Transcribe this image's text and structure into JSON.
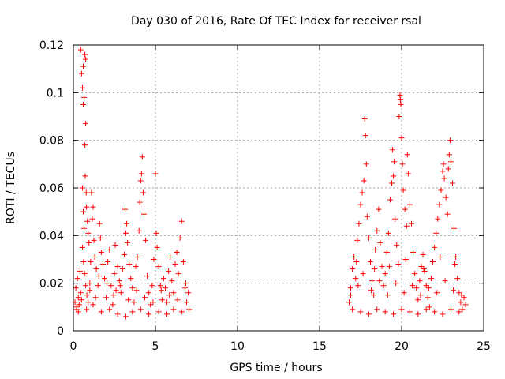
{
  "chart_data": {
    "type": "scatter",
    "title": "Day 030 of 2016, Rate Of TEC Index for receiver rsal",
    "xlabel": "GPS time / hours",
    "ylabel": "ROTI / TECUs",
    "xlim": [
      0,
      25
    ],
    "ylim": [
      0,
      0.12
    ],
    "x_ticks": [
      0,
      5,
      10,
      15,
      20,
      25
    ],
    "x_tick_labels": [
      "0",
      "5",
      "10",
      "15",
      "20",
      "25"
    ],
    "y_ticks": [
      0,
      0.02,
      0.04,
      0.06,
      0.08,
      0.1,
      0.12
    ],
    "y_tick_labels": [
      "0",
      "0.02",
      "0.04",
      "0.06",
      "0.08",
      "0.1",
      "0.12"
    ],
    "grid": true,
    "marker": "plus",
    "series": [
      {
        "name": "ROTI",
        "color": "#ff0000",
        "points": [
          [
            0.1,
            0.012
          ],
          [
            0.15,
            0.018
          ],
          [
            0.2,
            0.009
          ],
          [
            0.25,
            0.022
          ],
          [
            0.3,
            0.014
          ],
          [
            0.35,
            0.011
          ],
          [
            0.4,
            0.025
          ],
          [
            0.45,
            0.016
          ],
          [
            0.45,
            0.118
          ],
          [
            0.5,
            0.108
          ],
          [
            0.55,
            0.102
          ],
          [
            0.6,
            0.111
          ],
          [
            0.6,
            0.095
          ],
          [
            0.65,
            0.098
          ],
          [
            0.7,
            0.116
          ],
          [
            0.75,
            0.114
          ],
          [
            0.75,
            0.087
          ],
          [
            0.7,
            0.078
          ],
          [
            0.72,
            0.065
          ],
          [
            0.78,
            0.058
          ],
          [
            0.8,
            0.052
          ],
          [
            0.85,
            0.046
          ],
          [
            0.9,
            0.041
          ],
          [
            0.95,
            0.037
          ],
          [
            0.55,
            0.06
          ],
          [
            0.6,
            0.05
          ],
          [
            0.65,
            0.043
          ],
          [
            0.55,
            0.035
          ],
          [
            0.62,
            0.029
          ],
          [
            0.68,
            0.024
          ],
          [
            0.75,
            0.019
          ],
          [
            0.82,
            0.015
          ],
          [
            0.9,
            0.012
          ],
          [
            1.0,
            0.02
          ],
          [
            1.05,
            0.029
          ],
          [
            1.1,
            0.058
          ],
          [
            1.15,
            0.047
          ],
          [
            1.2,
            0.052
          ],
          [
            1.25,
            0.038
          ],
          [
            1.3,
            0.031
          ],
          [
            1.4,
            0.026
          ],
          [
            1.5,
            0.019
          ],
          [
            1.6,
            0.045
          ],
          [
            1.65,
            0.039
          ],
          [
            1.7,
            0.033
          ],
          [
            1.8,
            0.028
          ],
          [
            1.9,
            0.022
          ],
          [
            2.0,
            0.014
          ],
          [
            2.1,
            0.029
          ],
          [
            2.2,
            0.034
          ],
          [
            2.3,
            0.019
          ],
          [
            2.4,
            0.011
          ],
          [
            2.5,
            0.024
          ],
          [
            2.6,
            0.017
          ],
          [
            2.7,
            0.027
          ],
          [
            2.8,
            0.021
          ],
          [
            2.9,
            0.016
          ],
          [
            3.0,
            0.026
          ],
          [
            3.1,
            0.032
          ],
          [
            3.2,
            0.041
          ],
          [
            3.25,
            0.045
          ],
          [
            3.3,
            0.037
          ],
          [
            3.4,
            0.028
          ],
          [
            3.5,
            0.022
          ],
          [
            3.6,
            0.018
          ],
          [
            3.7,
            0.012
          ],
          [
            3.8,
            0.027
          ],
          [
            3.9,
            0.031
          ],
          [
            4.0,
            0.042
          ],
          [
            4.05,
            0.054
          ],
          [
            4.1,
            0.063
          ],
          [
            4.15,
            0.066
          ],
          [
            4.2,
            0.073
          ],
          [
            4.25,
            0.058
          ],
          [
            4.3,
            0.049
          ],
          [
            4.4,
            0.038
          ],
          [
            4.5,
            0.023
          ],
          [
            4.6,
            0.016
          ],
          [
            4.7,
            0.011
          ],
          [
            4.8,
            0.019
          ],
          [
            4.9,
            0.03
          ],
          [
            5.0,
            0.066
          ],
          [
            5.05,
            0.041
          ],
          [
            5.1,
            0.035
          ],
          [
            5.2,
            0.027
          ],
          [
            5.3,
            0.019
          ],
          [
            5.4,
            0.013
          ],
          [
            5.5,
            0.022
          ],
          [
            5.6,
            0.018
          ],
          [
            5.7,
            0.012
          ],
          [
            5.8,
            0.025
          ],
          [
            5.9,
            0.031
          ],
          [
            6.0,
            0.021
          ],
          [
            6.1,
            0.016
          ],
          [
            6.2,
            0.028
          ],
          [
            6.3,
            0.033
          ],
          [
            6.4,
            0.024
          ],
          [
            6.5,
            0.039
          ],
          [
            6.6,
            0.046
          ],
          [
            6.7,
            0.029
          ],
          [
            6.8,
            0.018
          ],
          [
            6.9,
            0.012
          ],
          [
            7.0,
            0.016
          ],
          [
            7.05,
            0.009
          ],
          [
            0.2,
            0.01
          ],
          [
            0.3,
            0.008
          ],
          [
            0.5,
            0.013
          ],
          [
            0.8,
            0.009
          ],
          [
            1.2,
            0.011
          ],
          [
            1.7,
            0.008
          ],
          [
            2.2,
            0.009
          ],
          [
            2.7,
            0.007
          ],
          [
            3.2,
            0.006
          ],
          [
            3.6,
            0.008
          ],
          [
            4.1,
            0.009
          ],
          [
            4.6,
            0.007
          ],
          [
            5.2,
            0.008
          ],
          [
            5.7,
            0.007
          ],
          [
            6.1,
            0.009
          ],
          [
            6.6,
            0.008
          ],
          [
            1.0,
            0.017
          ],
          [
            1.35,
            0.014
          ],
          [
            1.55,
            0.023
          ],
          [
            2.05,
            0.02
          ],
          [
            2.45,
            0.015
          ],
          [
            2.85,
            0.019
          ],
          [
            3.35,
            0.013
          ],
          [
            3.85,
            0.017
          ],
          [
            4.35,
            0.014
          ],
          [
            4.85,
            0.012
          ],
          [
            5.35,
            0.017
          ],
          [
            5.85,
            0.015
          ],
          [
            6.35,
            0.013
          ],
          [
            6.85,
            0.02
          ],
          [
            3.15,
            0.051
          ],
          [
            2.55,
            0.036
          ],
          [
            16.8,
            0.012
          ],
          [
            16.9,
            0.018
          ],
          [
            17.0,
            0.026
          ],
          [
            17.1,
            0.031
          ],
          [
            17.2,
            0.022
          ],
          [
            17.3,
            0.038
          ],
          [
            17.4,
            0.045
          ],
          [
            17.5,
            0.053
          ],
          [
            17.6,
            0.058
          ],
          [
            17.7,
            0.063
          ],
          [
            17.75,
            0.089
          ],
          [
            17.8,
            0.082
          ],
          [
            17.85,
            0.07
          ],
          [
            17.9,
            0.048
          ],
          [
            18.0,
            0.039
          ],
          [
            18.1,
            0.029
          ],
          [
            18.2,
            0.021
          ],
          [
            18.3,
            0.015
          ],
          [
            18.4,
            0.034
          ],
          [
            18.5,
            0.042
          ],
          [
            18.6,
            0.051
          ],
          [
            18.7,
            0.037
          ],
          [
            18.8,
            0.027
          ],
          [
            18.9,
            0.019
          ],
          [
            19.0,
            0.024
          ],
          [
            19.1,
            0.033
          ],
          [
            19.2,
            0.041
          ],
          [
            19.3,
            0.055
          ],
          [
            19.4,
            0.062
          ],
          [
            19.45,
            0.076
          ],
          [
            19.5,
            0.065
          ],
          [
            19.55,
            0.071
          ],
          [
            19.6,
            0.047
          ],
          [
            19.7,
            0.036
          ],
          [
            19.8,
            0.028
          ],
          [
            19.85,
            0.09
          ],
          [
            19.9,
            0.099
          ],
          [
            19.92,
            0.097
          ],
          [
            19.95,
            0.095
          ],
          [
            20.0,
            0.081
          ],
          [
            20.05,
            0.07
          ],
          [
            20.1,
            0.059
          ],
          [
            20.2,
            0.051
          ],
          [
            20.3,
            0.044
          ],
          [
            20.35,
            0.074
          ],
          [
            20.4,
            0.066
          ],
          [
            20.5,
            0.053
          ],
          [
            20.6,
            0.045
          ],
          [
            20.7,
            0.033
          ],
          [
            20.8,
            0.024
          ],
          [
            20.9,
            0.018
          ],
          [
            21.0,
            0.013
          ],
          [
            21.1,
            0.021
          ],
          [
            21.2,
            0.027
          ],
          [
            21.3,
            0.032
          ],
          [
            21.4,
            0.025
          ],
          [
            21.5,
            0.019
          ],
          [
            21.6,
            0.014
          ],
          [
            21.7,
            0.01
          ],
          [
            21.8,
            0.022
          ],
          [
            21.9,
            0.029
          ],
          [
            22.0,
            0.035
          ],
          [
            22.1,
            0.041
          ],
          [
            22.2,
            0.047
          ],
          [
            22.3,
            0.053
          ],
          [
            22.4,
            0.059
          ],
          [
            22.5,
            0.067
          ],
          [
            22.55,
            0.07
          ],
          [
            22.6,
            0.064
          ],
          [
            22.7,
            0.056
          ],
          [
            22.8,
            0.049
          ],
          [
            22.85,
            0.068
          ],
          [
            22.9,
            0.074
          ],
          [
            22.95,
            0.08
          ],
          [
            23.0,
            0.071
          ],
          [
            23.1,
            0.062
          ],
          [
            23.2,
            0.043
          ],
          [
            23.3,
            0.031
          ],
          [
            23.4,
            0.022
          ],
          [
            23.5,
            0.016
          ],
          [
            23.6,
            0.012
          ],
          [
            23.7,
            0.009
          ],
          [
            23.8,
            0.014
          ],
          [
            23.9,
            0.011
          ],
          [
            17.0,
            0.009
          ],
          [
            17.5,
            0.008
          ],
          [
            18.0,
            0.007
          ],
          [
            18.5,
            0.009
          ],
          [
            19.0,
            0.008
          ],
          [
            19.5,
            0.007
          ],
          [
            20.0,
            0.009
          ],
          [
            20.5,
            0.008
          ],
          [
            21.0,
            0.007
          ],
          [
            21.5,
            0.009
          ],
          [
            22.0,
            0.008
          ],
          [
            22.5,
            0.007
          ],
          [
            23.0,
            0.009
          ],
          [
            23.5,
            0.008
          ],
          [
            16.9,
            0.015
          ],
          [
            17.35,
            0.019
          ],
          [
            17.65,
            0.024
          ],
          [
            18.15,
            0.017
          ],
          [
            18.65,
            0.021
          ],
          [
            19.15,
            0.015
          ],
          [
            19.65,
            0.02
          ],
          [
            20.15,
            0.016
          ],
          [
            20.65,
            0.019
          ],
          [
            21.15,
            0.015
          ],
          [
            21.65,
            0.018
          ],
          [
            22.15,
            0.016
          ],
          [
            22.65,
            0.021
          ],
          [
            23.15,
            0.017
          ],
          [
            23.65,
            0.015
          ],
          [
            17.25,
            0.029
          ],
          [
            18.35,
            0.026
          ],
          [
            19.25,
            0.027
          ],
          [
            20.25,
            0.03
          ],
          [
            21.35,
            0.026
          ],
          [
            22.35,
            0.031
          ],
          [
            23.25,
            0.028
          ]
        ]
      }
    ]
  }
}
